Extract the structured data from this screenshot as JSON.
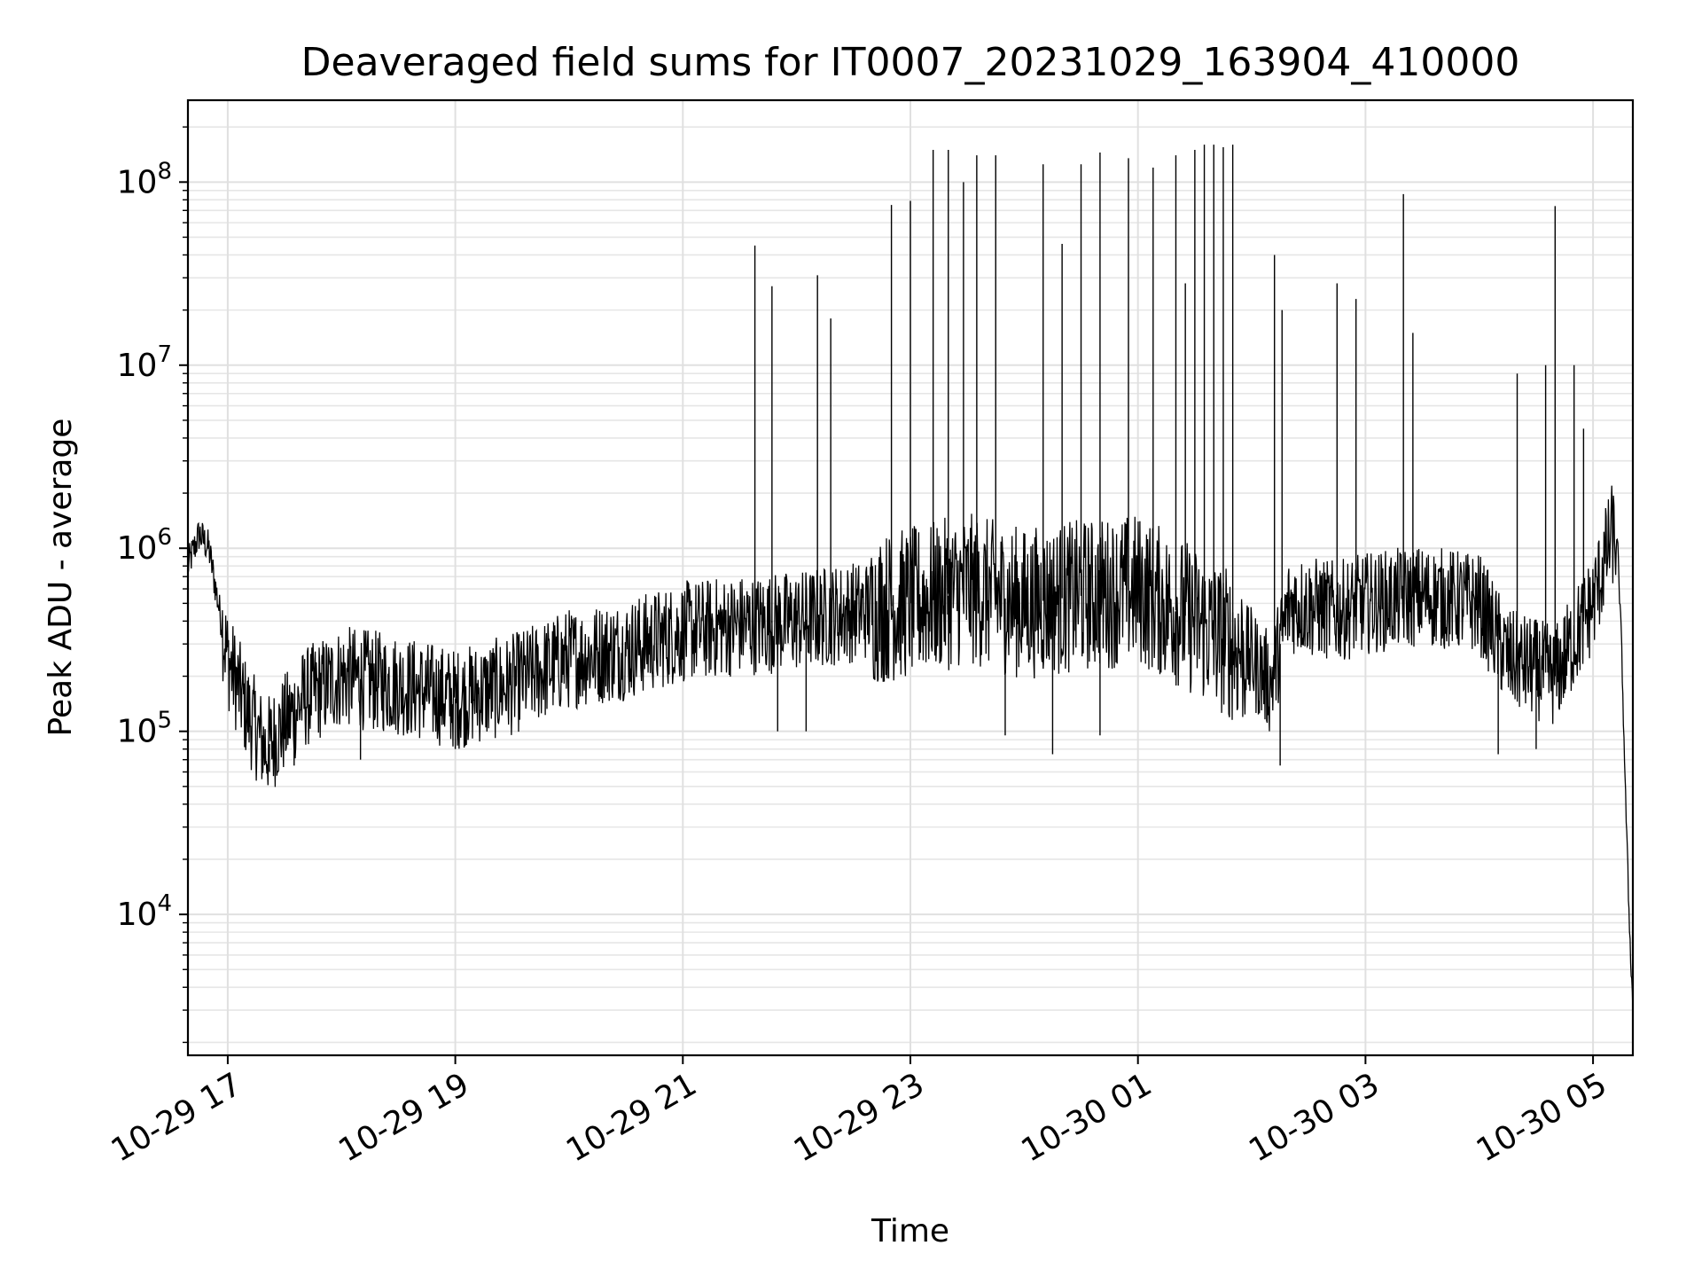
{
  "chart_data": {
    "type": "line",
    "title": "Deaveraged field sums for IT0007_20231029_163904_410000",
    "xlabel": "Time",
    "ylabel": "Peak ADU - average",
    "yscale": "log",
    "xlim": [
      "2023-10-29 16:39",
      "2023-10-30 05:21"
    ],
    "ylim": [
      1700,
      280000000
    ],
    "grid": true,
    "x_ticks": [
      {
        "label": "10-29 17",
        "t": "2023-10-29 17:00"
      },
      {
        "label": "10-29 19",
        "t": "2023-10-29 19:00"
      },
      {
        "label": "10-29 21",
        "t": "2023-10-29 21:00"
      },
      {
        "label": "10-29 23",
        "t": "2023-10-29 23:00"
      },
      {
        "label": "10-30 01",
        "t": "2023-10-30 01:00"
      },
      {
        "label": "10-30 03",
        "t": "2023-10-30 03:00"
      },
      {
        "label": "10-30 05",
        "t": "2023-10-30 05:00"
      }
    ],
    "y_ticks": [
      {
        "value": 10000,
        "base": "10",
        "exp": "4"
      },
      {
        "value": 100000,
        "base": "10",
        "exp": "5"
      },
      {
        "value": 1000000,
        "base": "10",
        "exp": "6"
      },
      {
        "value": 10000000,
        "base": "10",
        "exp": "7"
      },
      {
        "value": 100000000,
        "base": "10",
        "exp": "8"
      }
    ],
    "series": [
      {
        "color": "#000000",
        "points": [
          [
            "2023-10-29 16:39",
            800000
          ],
          [
            "2023-10-29 16:45",
            1200000
          ],
          [
            "2023-10-29 16:50",
            1000000
          ],
          [
            "2023-10-29 16:55",
            500000
          ],
          [
            "2023-10-29 17:00",
            250000
          ],
          [
            "2023-10-29 17:10",
            130000
          ],
          [
            "2023-10-29 17:20",
            80000
          ],
          [
            "2023-10-29 17:40",
            150000
          ],
          [
            "2023-10-29 18:00",
            200000
          ],
          [
            "2023-10-29 18:30",
            180000
          ],
          [
            "2023-10-29 19:00",
            150000
          ],
          [
            "2023-10-29 19:30",
            180000
          ],
          [
            "2023-10-29 20:00",
            250000
          ],
          [
            "2023-10-29 20:30",
            280000
          ],
          [
            "2023-10-29 21:00",
            350000
          ],
          [
            "2023-10-29 21:30",
            380000
          ],
          [
            "2023-10-29 22:00",
            400000
          ],
          [
            "2023-10-29 22:30",
            450000
          ],
          [
            "2023-10-29 23:00",
            500000
          ],
          [
            "2023-10-29 23:30",
            600000
          ],
          [
            "2023-10-30 00:00",
            500000
          ],
          [
            "2023-10-30 00:30",
            550000
          ],
          [
            "2023-10-30 01:00",
            600000
          ],
          [
            "2023-10-30 01:30",
            400000
          ],
          [
            "2023-10-30 02:00",
            250000
          ],
          [
            "2023-10-30 02:10",
            180000
          ],
          [
            "2023-10-30 02:20",
            500000
          ],
          [
            "2023-10-30 02:45",
            450000
          ],
          [
            "2023-10-30 03:00",
            500000
          ],
          [
            "2023-10-30 03:30",
            550000
          ],
          [
            "2023-10-30 04:00",
            500000
          ],
          [
            "2023-10-30 04:15",
            250000
          ],
          [
            "2023-10-30 04:40",
            200000
          ],
          [
            "2023-10-30 05:00",
            500000
          ],
          [
            "2023-10-30 05:10",
            1200000
          ],
          [
            "2023-10-30 05:13",
            1000000
          ],
          [
            "2023-10-30 05:15",
            300000
          ],
          [
            "2023-10-30 05:17",
            50000
          ],
          [
            "2023-10-30 05:19",
            10000
          ],
          [
            "2023-10-30 05:21",
            3000
          ]
        ],
        "spikes": [
          [
            "2023-10-29 21:38",
            45000000
          ],
          [
            "2023-10-29 21:47",
            27000000
          ],
          [
            "2023-10-29 22:11",
            31000000
          ],
          [
            "2023-10-29 22:18",
            18000000
          ],
          [
            "2023-10-29 22:50",
            75000000
          ],
          [
            "2023-10-29 23:00",
            79000000
          ],
          [
            "2023-10-29 23:12",
            150000000
          ],
          [
            "2023-10-29 23:20",
            150000000
          ],
          [
            "2023-10-29 23:28",
            100000000
          ],
          [
            "2023-10-29 23:35",
            140000000
          ],
          [
            "2023-10-29 23:45",
            140000000
          ],
          [
            "2023-10-30 00:10",
            125000000
          ],
          [
            "2023-10-30 00:20",
            46000000
          ],
          [
            "2023-10-30 00:30",
            125000000
          ],
          [
            "2023-10-30 00:40",
            145000000
          ],
          [
            "2023-10-30 00:55",
            135000000
          ],
          [
            "2023-10-30 01:08",
            120000000
          ],
          [
            "2023-10-30 01:20",
            140000000
          ],
          [
            "2023-10-30 01:25",
            28000000
          ],
          [
            "2023-10-30 01:30",
            150000000
          ],
          [
            "2023-10-30 01:35",
            160000000
          ],
          [
            "2023-10-30 01:40",
            160000000
          ],
          [
            "2023-10-30 01:45",
            155000000
          ],
          [
            "2023-10-30 01:50",
            160000000
          ],
          [
            "2023-10-30 02:12",
            40000000
          ],
          [
            "2023-10-30 02:16",
            20000000
          ],
          [
            "2023-10-30 02:45",
            28000000
          ],
          [
            "2023-10-30 02:55",
            23000000
          ],
          [
            "2023-10-30 03:20",
            86000000
          ],
          [
            "2023-10-30 03:25",
            15000000
          ],
          [
            "2023-10-30 04:20",
            9000000
          ],
          [
            "2023-10-30 04:35",
            10000000
          ],
          [
            "2023-10-30 04:50",
            10000000
          ],
          [
            "2023-10-30 04:40",
            74000000
          ],
          [
            "2023-10-30 04:55",
            4500000
          ]
        ],
        "dips": [
          [
            "2023-10-29 17:22",
            60000
          ],
          [
            "2023-10-29 17:35",
            65000
          ],
          [
            "2023-10-29 18:10",
            70000
          ],
          [
            "2023-10-29 19:00",
            80000
          ],
          [
            "2023-10-29 21:50",
            100000
          ],
          [
            "2023-10-29 22:05",
            100000
          ],
          [
            "2023-10-29 23:50",
            95000
          ],
          [
            "2023-10-30 00:15",
            75000
          ],
          [
            "2023-10-30 00:40",
            95000
          ],
          [
            "2023-10-30 02:15",
            65000
          ],
          [
            "2023-10-30 04:10",
            75000
          ],
          [
            "2023-10-30 04:30",
            80000
          ]
        ]
      }
    ]
  }
}
